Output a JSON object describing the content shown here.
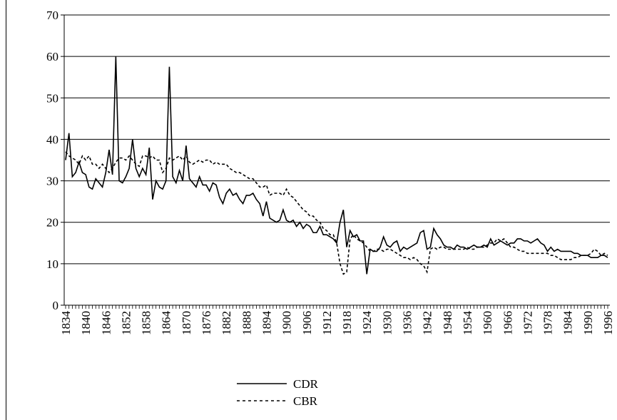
{
  "chart_data": {
    "type": "line",
    "x": [
      1834,
      1835,
      1836,
      1837,
      1838,
      1839,
      1840,
      1841,
      1842,
      1843,
      1844,
      1845,
      1846,
      1847,
      1848,
      1849,
      1850,
      1851,
      1852,
      1853,
      1854,
      1855,
      1856,
      1857,
      1858,
      1859,
      1860,
      1861,
      1862,
      1863,
      1864,
      1865,
      1866,
      1867,
      1868,
      1869,
      1870,
      1871,
      1872,
      1873,
      1874,
      1875,
      1876,
      1877,
      1878,
      1879,
      1880,
      1881,
      1882,
      1883,
      1884,
      1885,
      1886,
      1887,
      1888,
      1889,
      1890,
      1891,
      1892,
      1893,
      1894,
      1895,
      1896,
      1897,
      1898,
      1899,
      1900,
      1901,
      1902,
      1903,
      1904,
      1905,
      1906,
      1907,
      1908,
      1909,
      1910,
      1911,
      1912,
      1913,
      1914,
      1915,
      1916,
      1917,
      1918,
      1919,
      1920,
      1921,
      1922,
      1923,
      1924,
      1925,
      1926,
      1927,
      1928,
      1929,
      1930,
      1931,
      1932,
      1933,
      1934,
      1935,
      1936,
      1937,
      1938,
      1939,
      1940,
      1941,
      1942,
      1943,
      1944,
      1945,
      1946,
      1947,
      1948,
      1949,
      1950,
      1951,
      1952,
      1953,
      1954,
      1955,
      1956,
      1957,
      1958,
      1959,
      1960,
      1961,
      1962,
      1963,
      1964,
      1965,
      1966,
      1967,
      1968,
      1969,
      1970,
      1971,
      1972,
      1973,
      1974,
      1975,
      1976,
      1977,
      1978,
      1979,
      1980,
      1981,
      1982,
      1983,
      1984,
      1985,
      1986,
      1987,
      1988,
      1989,
      1990,
      1991,
      1992,
      1993,
      1994,
      1995,
      1996
    ],
    "series": [
      {
        "name": "CDR",
        "color": "#000000",
        "line_style": "solid",
        "values": [
          35,
          41.5,
          31,
          32,
          34.5,
          32,
          31.5,
          28.5,
          28,
          30.5,
          29.5,
          28.5,
          32,
          37.5,
          31.5,
          60,
          30,
          29.5,
          31,
          33,
          40,
          33,
          31,
          33,
          31.5,
          38,
          25.5,
          30,
          28.5,
          28,
          30,
          57.5,
          31,
          29.5,
          32.5,
          30,
          38.5,
          30.5,
          29.5,
          28.5,
          31,
          29,
          29,
          27.5,
          29.5,
          29,
          26,
          24.5,
          27,
          28,
          26.5,
          27,
          25.5,
          24.5,
          26.5,
          26.5,
          27,
          25.5,
          24.5,
          21.5,
          25,
          21,
          20.5,
          20,
          20.5,
          23,
          20.5,
          20,
          20.5,
          19,
          20,
          18.5,
          19.5,
          19,
          17.5,
          17.5,
          19,
          17,
          17,
          16.5,
          16,
          15,
          20,
          23,
          14,
          18,
          16.5,
          17,
          15.5,
          15.5,
          7.5,
          13.5,
          13,
          13,
          14,
          16.5,
          14.5,
          14,
          15,
          15.5,
          13,
          14,
          13.5,
          14,
          14.5,
          15,
          17.5,
          18,
          13.5,
          14,
          18.5,
          17,
          16,
          14.5,
          14,
          14,
          13.5,
          14.5,
          14,
          14,
          13.5,
          14,
          14.5,
          14,
          14,
          14.5,
          14,
          16,
          14.5,
          15,
          15.5,
          15,
          14.5,
          15,
          15,
          16,
          16,
          15.5,
          15.5,
          15,
          15.5,
          16,
          15,
          14.5,
          13,
          14,
          13,
          13.5,
          13,
          13,
          13,
          13,
          12.5,
          12.5,
          12,
          12,
          12,
          11.5,
          11.5,
          11.5,
          12,
          12,
          11.5
        ]
      },
      {
        "name": "CBR",
        "color": "#000000",
        "line_style": "dashed",
        "values": [
          37,
          36,
          35.5,
          35,
          34,
          36,
          35,
          36,
          34,
          34,
          33,
          34,
          33,
          32,
          33,
          34.5,
          35.5,
          35.5,
          35,
          36,
          35,
          34,
          33.5,
          36,
          36,
          35.5,
          36,
          35,
          35,
          32,
          33,
          35.5,
          35,
          35.5,
          36,
          35,
          36,
          34.5,
          34,
          34.5,
          35,
          34.5,
          35,
          35,
          34,
          34.5,
          34,
          34,
          34,
          33,
          32.5,
          32,
          32,
          31.5,
          31,
          30.5,
          30.5,
          29.5,
          28.5,
          28.5,
          29,
          26.5,
          27,
          27,
          27,
          26.5,
          28,
          26.5,
          26,
          25,
          24,
          23,
          22.5,
          21.5,
          21.5,
          20.5,
          20,
          18.5,
          18,
          17,
          17,
          15,
          10,
          7.5,
          8,
          16,
          17,
          16,
          15.5,
          15,
          14,
          13,
          13,
          13.5,
          13.5,
          13,
          13.5,
          13.5,
          13,
          12.5,
          12,
          11.5,
          11.5,
          11,
          11.5,
          11,
          10,
          9.5,
          8,
          13.5,
          14,
          13.5,
          14,
          14,
          13.5,
          13.5,
          13.5,
          13.5,
          13.5,
          13.5,
          14,
          13.5,
          13.5,
          14,
          14,
          14,
          14.5,
          15,
          15,
          16,
          15.5,
          16,
          15,
          14,
          14,
          13.5,
          13,
          13,
          12.5,
          12.5,
          12.5,
          12.5,
          12.5,
          12.5,
          12.5,
          12,
          12,
          11.5,
          11,
          11,
          11,
          11,
          11.5,
          11.5,
          12,
          12,
          12,
          12.5,
          13.5,
          13,
          12,
          12.5,
          12
        ]
      }
    ],
    "xlim": [
      1834,
      1996
    ],
    "xticks": [
      1834,
      1840,
      1846,
      1852,
      1858,
      1864,
      1870,
      1876,
      1882,
      1888,
      1894,
      1900,
      1906,
      1912,
      1918,
      1924,
      1930,
      1936,
      1942,
      1948,
      1954,
      1960,
      1966,
      1972,
      1978,
      1984,
      1990,
      1996
    ],
    "ylim": [
      0,
      70
    ],
    "yticks": [
      0,
      10,
      20,
      30,
      40,
      50,
      60,
      70
    ],
    "grid": true,
    "legend": "bottom"
  }
}
